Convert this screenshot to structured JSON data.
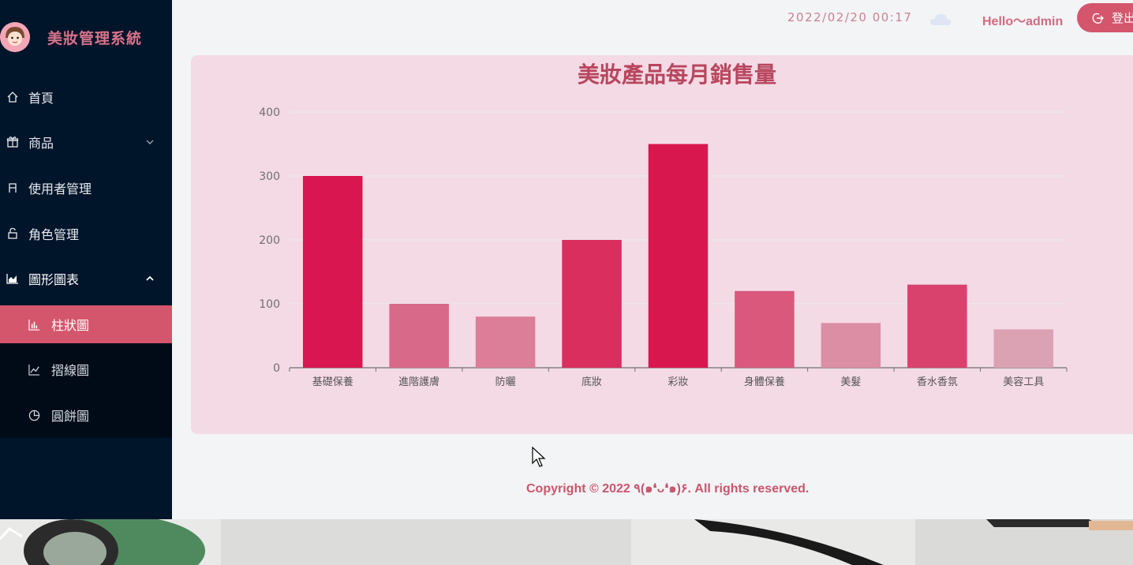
{
  "brand": {
    "title": "美妝管理系統",
    "logo_icon": "girl-avatar-icon"
  },
  "sidebar": {
    "items": [
      {
        "label": "首頁",
        "icon": "home-icon"
      },
      {
        "label": "商品",
        "icon": "gift-icon"
      },
      {
        "label": "使用者管理",
        "icon": "user-icon"
      },
      {
        "label": "角色管理",
        "icon": "lock-icon"
      },
      {
        "label": "圖形圖表",
        "icon": "area-chart-icon"
      }
    ],
    "chart_submenu": [
      {
        "label": "柱狀圖",
        "icon": "bar-chart-icon",
        "active": true
      },
      {
        "label": "摺線圖",
        "icon": "line-chart-icon"
      },
      {
        "label": "圓餅圖",
        "icon": "pie-chart-icon"
      }
    ]
  },
  "header": {
    "datetime": "2022/02/20 00:17",
    "weather_icon": "cloud-icon",
    "greeting": "Hello～admin",
    "logout_label": "登出"
  },
  "chart_data": {
    "type": "bar",
    "title": "美妝產品每月銷售量",
    "categories": [
      "基礎保養",
      "進階護膚",
      "防曬",
      "底妝",
      "彩妝",
      "身體保養",
      "美髮",
      "香水香氛",
      "美容工具"
    ],
    "values": [
      300,
      100,
      80,
      200,
      350,
      120,
      70,
      130,
      60
    ],
    "colors": [
      "#d91650",
      "#d86989",
      "#dc7e97",
      "#da2e5e",
      "#d9174f",
      "#d9587c",
      "#dc8ea4",
      "#d9426d",
      "#dba2b3"
    ],
    "ylim": [
      0,
      400
    ],
    "yticks": [
      0,
      100,
      200,
      300,
      400
    ],
    "grid": true
  },
  "footer": {
    "copyright": "Copyright © 2022 ٩(๑❛ᴗ❛๑)۶. All rights reserved."
  }
}
